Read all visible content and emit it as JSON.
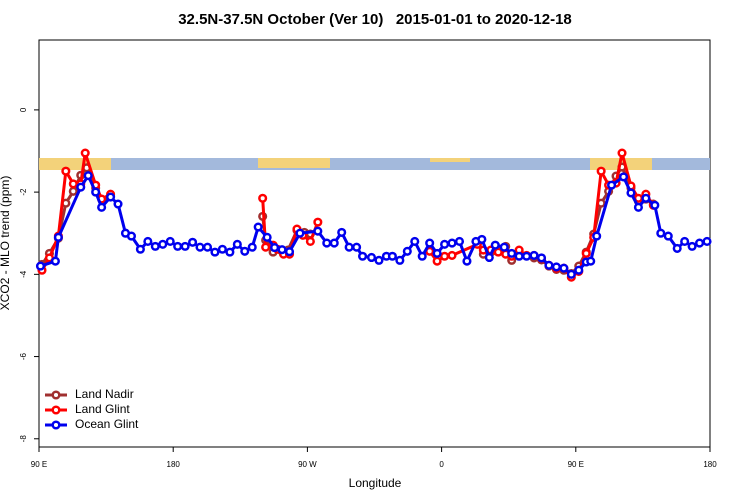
{
  "chart_data": {
    "type": "line",
    "title": "32.5N-37.5N October (Ver 10)   2015-01-01 to 2020-12-18",
    "x_label": "Longitude",
    "y_label": "XCO2 - MLO trend (ppm)",
    "xlim": [
      90,
      540
    ],
    "ylim": [
      -8.2,
      1.7
    ],
    "xticks": [
      {
        "value": 90,
        "label": "90 E"
      },
      {
        "value": 180,
        "label": "180"
      },
      {
        "value": 270,
        "label": "90 W"
      },
      {
        "value": 360,
        "label": "0"
      },
      {
        "value": 450,
        "label": "90 E"
      },
      {
        "value": 540,
        "label": "180"
      }
    ],
    "yticks": [
      -8,
      -6,
      -4,
      -2,
      0
    ],
    "legend": "bottomleft",
    "series": [
      {
        "name": "Land Nadir",
        "color": "#a03030",
        "x": [
          92,
          97,
          103,
          108,
          113,
          118,
          122,
          128,
          133,
          138,
          190,
          240,
          242,
          247,
          252,
          257,
          263,
          268,
          272,
          330,
          384,
          388,
          393,
          398,
          403,
          407,
          412,
          417,
          422,
          427,
          432,
          437,
          442,
          447,
          452,
          457,
          462,
          467,
          472,
          477,
          481,
          487,
          492,
          497,
          502
        ],
        "values": [
          -3.76,
          -3.49,
          -3.12,
          -2.27,
          -1.98,
          -1.59,
          -1.41,
          -1.9,
          -2.2,
          -2.1,
          null,
          -2.59,
          -3.17,
          -3.46,
          -3.41,
          -3.41,
          -2.93,
          -2.98,
          -3.02,
          null,
          -3.24,
          -3.51,
          -3.46,
          -3.4,
          -3.32,
          -3.66,
          -3.5,
          -3.55,
          -3.6,
          -3.65,
          -3.8,
          -3.88,
          -3.9,
          -3.98,
          -3.8,
          -3.46,
          -3.02,
          -2.27,
          -1.98,
          -1.61,
          -1.39,
          -1.9,
          -2.22,
          -2.17,
          -2.29
        ]
      },
      {
        "name": "Land Glint",
        "color": "#ff0000",
        "x": [
          92,
          97,
          103,
          108,
          113,
          118,
          121,
          128,
          132,
          138,
          190,
          240,
          242,
          247,
          250,
          254,
          258,
          263,
          267,
          272,
          277,
          315,
          352,
          357,
          362,
          367,
          384,
          388,
          393,
          398,
          403,
          407,
          412,
          417,
          422,
          427,
          432,
          437,
          442,
          447,
          452,
          457,
          462,
          467,
          472,
          477,
          481,
          487,
          492,
          497,
          502
        ],
        "values": [
          -3.9,
          -3.6,
          -3.07,
          -1.49,
          -1.8,
          -1.8,
          -1.05,
          -1.83,
          -2.17,
          -2.05,
          null,
          -2.15,
          -3.34,
          -3.29,
          -3.39,
          -3.51,
          -3.51,
          -2.9,
          -3.05,
          -3.2,
          -2.73,
          null,
          -3.44,
          -3.68,
          -3.56,
          -3.54,
          -3.27,
          -3.41,
          -3.41,
          -3.46,
          -3.51,
          -3.56,
          -3.41,
          -3.54,
          -3.54,
          -3.61,
          -3.78,
          -3.85,
          -3.85,
          -4.07,
          -3.93,
          -3.49,
          -3.1,
          -1.49,
          -1.83,
          -1.78,
          -1.05,
          -1.85,
          -2.15,
          -2.05,
          -2.32
        ]
      },
      {
        "name": "Ocean Glint",
        "color": "#0000ee",
        "x": [
          91,
          101,
          103,
          118,
          123,
          128,
          132,
          138,
          143,
          148,
          152,
          158,
          163,
          168,
          173,
          178,
          183,
          188,
          193,
          198,
          203,
          208,
          213,
          218,
          223,
          228,
          233,
          237,
          243,
          248,
          253,
          258,
          265,
          277,
          283,
          288,
          293,
          298,
          303,
          307,
          313,
          318,
          323,
          327,
          332,
          337,
          342,
          347,
          352,
          357,
          362,
          367,
          372,
          377,
          383,
          387,
          392,
          396,
          402,
          407,
          412,
          417,
          422,
          427,
          432,
          437,
          442,
          447,
          452,
          457,
          460,
          464,
          474,
          482,
          487,
          492,
          497,
          503,
          507,
          512,
          518,
          523,
          528,
          533,
          538
        ],
        "values": [
          -3.8,
          -3.68,
          -3.1,
          -1.88,
          -1.6,
          -2.0,
          -2.37,
          -2.12,
          -2.29,
          -3.0,
          -3.07,
          -3.39,
          -3.2,
          -3.32,
          -3.27,
          -3.2,
          -3.32,
          -3.32,
          -3.22,
          -3.34,
          -3.34,
          -3.46,
          -3.39,
          -3.46,
          -3.27,
          -3.44,
          -3.34,
          -2.85,
          -3.1,
          -3.35,
          -3.4,
          -3.45,
          -3.0,
          -2.95,
          -3.24,
          -3.24,
          -2.98,
          -3.34,
          -3.34,
          -3.56,
          -3.59,
          -3.66,
          -3.56,
          -3.56,
          -3.66,
          -3.44,
          -3.2,
          -3.56,
          -3.24,
          -3.49,
          -3.27,
          -3.24,
          -3.2,
          -3.68,
          -3.2,
          -3.15,
          -3.59,
          -3.29,
          -3.34,
          -3.49,
          -3.56,
          -3.56,
          -3.54,
          -3.6,
          -3.78,
          -3.82,
          -3.85,
          -4.0,
          -3.9,
          -3.7,
          -3.68,
          -3.07,
          -1.83,
          -1.63,
          -2.02,
          -2.37,
          -2.15,
          -2.32,
          -3.0,
          -3.07,
          -3.37,
          -3.2,
          -3.32,
          -3.24,
          -3.2
        ]
      }
    ]
  }
}
